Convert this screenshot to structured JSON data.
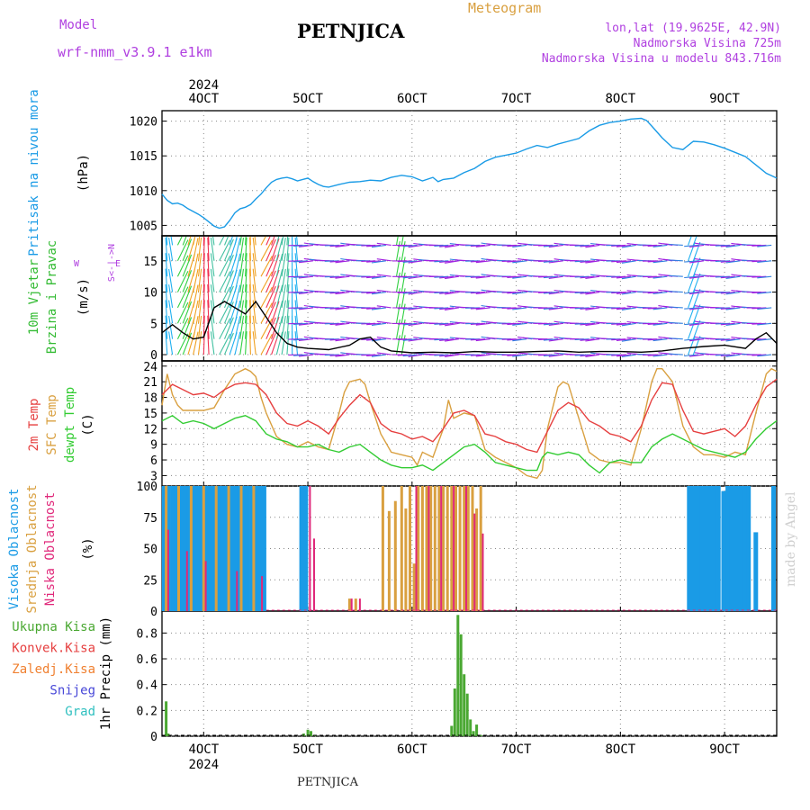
{
  "header": {
    "model_label": "Model",
    "model_name": "wrf-nmm_v3.9.1  e1km",
    "station": "PETNJICA",
    "product": "Meteogram",
    "coords": "lon,lat (19.9625E, 42.9N)",
    "altitude": "Nadmorska Visina 725m",
    "model_altitude": "Nadmorska Visina u modelu 843.716m"
  },
  "footer": {
    "station": "PETNJICA",
    "credit": "made by Angel"
  },
  "time_axis": {
    "year": "2024",
    "day_labels": [
      "4OCT",
      "5OCT",
      "6OCT",
      "7OCT",
      "8OCT",
      "9OCT"
    ],
    "day_values": [
      4,
      5,
      6,
      7,
      8,
      9
    ],
    "xlim": [
      3.6,
      9.5
    ]
  },
  "panels": {
    "pressure": {
      "ylabel_colored": "Pritisak na nivou mora",
      "unit": "(hPa)"
    },
    "wind": {
      "ylabel_1": "10m Vjetar",
      "ylabel_2": "Brzina i Pravac",
      "unit": "(m/s)",
      "compass": "W <-|-> E",
      "compass2": "S<-|->N"
    },
    "temp": {
      "ylabel_1": "2m Temp",
      "ylabel_2": "SFC Temp",
      "ylabel_3": "dewpt Temp",
      "unit": "(C)"
    },
    "cloud": {
      "ylabel_1": "Visoka Oblacnost",
      "ylabel_2": "Srednja Oblacnost",
      "ylabel_3": "Niska Oblacnost",
      "unit": "(%)"
    },
    "precip": {
      "ylabel": "1hr Precip (mm)",
      "legend": [
        "Ukupna Kisa",
        "Konvek.Kisa",
        "Zaledj.Kisa",
        "Snijeg",
        "Grad"
      ]
    }
  },
  "colors": {
    "pressure": "#1a9be6",
    "t2m": "#e64040",
    "tsfc": "#d9a040",
    "dewpt": "#33cc33",
    "high_cloud": "#1a9be6",
    "mid_cloud": "#d9a040",
    "low_cloud": "#e0287a",
    "precip_total": "#4aa832",
    "precip_conv": "#e64040",
    "precip_frz": "#f08030",
    "snow": "#4848d8",
    "hail": "#30c0c0",
    "label_purple": "#b040e0",
    "product_orange": "#d9a040"
  },
  "chart_data": [
    {
      "type": "line",
      "ylabel": "Pritisak na nivou mora (hPa)",
      "ylim": [
        1003.5,
        1021.5
      ],
      "yticks": [
        1005,
        1010,
        1015,
        1020
      ],
      "grid": true,
      "series": [
        {
          "name": "Pritisak na nivou mora",
          "x": [
            3.6,
            3.65,
            3.7,
            3.75,
            3.8,
            3.85,
            3.9,
            3.95,
            4.0,
            4.05,
            4.1,
            4.15,
            4.2,
            4.25,
            4.3,
            4.35,
            4.4,
            4.45,
            4.5,
            4.55,
            4.6,
            4.65,
            4.7,
            4.75,
            4.8,
            4.85,
            4.9,
            4.95,
            5.0,
            5.05,
            5.1,
            5.15,
            5.2,
            5.3,
            5.4,
            5.5,
            5.6,
            5.7,
            5.8,
            5.9,
            6.0,
            6.1,
            6.2,
            6.25,
            6.3,
            6.4,
            6.5,
            6.6,
            6.7,
            6.8,
            6.9,
            7.0,
            7.1,
            7.2,
            7.3,
            7.4,
            7.5,
            7.6,
            7.7,
            7.8,
            7.9,
            8.0,
            8.1,
            8.2,
            8.25,
            8.3,
            8.4,
            8.5,
            8.6,
            8.65,
            8.7,
            8.8,
            8.9,
            9.0,
            9.1,
            9.2,
            9.3,
            9.4,
            9.5
          ],
          "values": [
            1009.5,
            1008.6,
            1008.1,
            1008.2,
            1007.9,
            1007.4,
            1007.0,
            1006.6,
            1006.1,
            1005.5,
            1004.9,
            1004.6,
            1004.8,
            1005.7,
            1006.8,
            1007.4,
            1007.6,
            1008.0,
            1008.8,
            1009.5,
            1010.4,
            1011.2,
            1011.6,
            1011.8,
            1011.9,
            1011.7,
            1011.4,
            1011.6,
            1011.8,
            1011.3,
            1010.9,
            1010.6,
            1010.5,
            1010.9,
            1011.2,
            1011.3,
            1011.5,
            1011.4,
            1011.9,
            1012.2,
            1012.0,
            1011.4,
            1011.9,
            1011.3,
            1011.6,
            1011.8,
            1012.6,
            1013.2,
            1014.2,
            1014.8,
            1015.1,
            1015.4,
            1016.0,
            1016.5,
            1016.2,
            1016.7,
            1017.1,
            1017.5,
            1018.6,
            1019.4,
            1019.8,
            1020.0,
            1020.3,
            1020.4,
            1020.1,
            1019.3,
            1017.6,
            1016.2,
            1015.9,
            1016.5,
            1017.1,
            1017.0,
            1016.6,
            1016.1,
            1015.5,
            1014.9,
            1013.7,
            1012.5,
            1011.8
          ]
        }
      ]
    },
    {
      "type": "line",
      "ylabel": "10m Vjetar Brzina i Pravac (m/s)",
      "ylim": [
        -1,
        19
      ],
      "yticks": [
        0,
        5,
        10,
        15
      ],
      "grid": true,
      "series": [
        {
          "name": "10m Vjetar",
          "x": [
            3.6,
            3.7,
            3.8,
            3.9,
            4.0,
            4.1,
            4.2,
            4.3,
            4.4,
            4.5,
            4.6,
            4.7,
            4.8,
            4.9,
            5.0,
            5.2,
            5.4,
            5.5,
            5.6,
            5.7,
            5.8,
            6.0,
            6.2,
            6.4,
            6.6,
            6.8,
            7.0,
            7.2,
            7.4,
            7.6,
            7.8,
            8.0,
            8.2,
            8.4,
            8.6,
            8.8,
            9.0,
            9.2,
            9.3,
            9.4,
            9.5
          ],
          "values": [
            3.5,
            4.8,
            3.5,
            2.5,
            2.8,
            7.5,
            8.5,
            7.5,
            6.5,
            8.5,
            6.0,
            3.5,
            1.8,
            1.2,
            1.0,
            0.8,
            1.5,
            2.5,
            2.8,
            1.2,
            0.6,
            0.3,
            0.4,
            0.3,
            0.5,
            0.4,
            0.4,
            0.5,
            0.6,
            0.4,
            0.5,
            0.5,
            0.4,
            0.6,
            1.0,
            1.3,
            1.5,
            1.0,
            2.5,
            3.5,
            1.8
          ]
        }
      ]
    },
    {
      "type": "line",
      "ylabel": "Temp (C)",
      "ylim": [
        1,
        25
      ],
      "yticks": [
        3,
        6,
        9,
        12,
        15,
        18,
        21,
        24
      ],
      "grid": true,
      "series": [
        {
          "name": "2m Temp",
          "x": [
            3.6,
            3.7,
            3.8,
            3.9,
            4.0,
            4.1,
            4.2,
            4.3,
            4.4,
            4.5,
            4.6,
            4.7,
            4.8,
            4.9,
            5.0,
            5.1,
            5.2,
            5.3,
            5.4,
            5.5,
            5.6,
            5.7,
            5.8,
            5.9,
            6.0,
            6.1,
            6.2,
            6.3,
            6.4,
            6.5,
            6.6,
            6.7,
            6.8,
            6.9,
            7.0,
            7.1,
            7.2,
            7.3,
            7.4,
            7.5,
            7.6,
            7.7,
            7.8,
            7.9,
            8.0,
            8.1,
            8.2,
            8.3,
            8.4,
            8.5,
            8.6,
            8.7,
            8.8,
            8.9,
            9.0,
            9.1,
            9.2,
            9.3,
            9.4,
            9.5
          ],
          "values": [
            18.5,
            20.5,
            19.5,
            18.5,
            18.8,
            18.0,
            19.5,
            20.5,
            20.8,
            20.5,
            18.5,
            15.0,
            13.0,
            12.5,
            13.5,
            12.5,
            11.0,
            14.0,
            16.5,
            18.5,
            17.0,
            13.0,
            11.5,
            11.0,
            10.0,
            10.5,
            9.5,
            12.0,
            15.0,
            15.5,
            14.5,
            11.0,
            10.5,
            9.5,
            9.0,
            8.0,
            7.5,
            11.5,
            15.5,
            17.0,
            16.0,
            13.5,
            12.5,
            11.0,
            10.5,
            9.5,
            12.5,
            17.5,
            20.8,
            20.5,
            15.5,
            11.5,
            11.0,
            11.5,
            12.0,
            10.5,
            12.5,
            16.5,
            20.0,
            21.5
          ]
        },
        {
          "name": "SFC Temp",
          "x": [
            3.6,
            3.65,
            3.7,
            3.75,
            3.8,
            3.9,
            4.0,
            4.1,
            4.2,
            4.3,
            4.4,
            4.45,
            4.5,
            4.55,
            4.6,
            4.7,
            4.8,
            4.9,
            5.0,
            5.1,
            5.2,
            5.3,
            5.35,
            5.4,
            5.5,
            5.55,
            5.6,
            5.7,
            5.8,
            5.9,
            6.0,
            6.05,
            6.1,
            6.2,
            6.3,
            6.35,
            6.4,
            6.5,
            6.6,
            6.7,
            6.8,
            6.9,
            7.0,
            7.1,
            7.2,
            7.25,
            7.3,
            7.4,
            7.45,
            7.5,
            7.6,
            7.7,
            7.8,
            7.9,
            8.0,
            8.1,
            8.2,
            8.3,
            8.35,
            8.4,
            8.5,
            8.6,
            8.7,
            8.8,
            8.9,
            9.0,
            9.1,
            9.2,
            9.3,
            9.4,
            9.45,
            9.5
          ],
          "values": [
            16.5,
            22.5,
            18.5,
            16.5,
            15.5,
            15.5,
            15.5,
            16.0,
            19.5,
            22.5,
            23.5,
            23.0,
            22.0,
            18.0,
            15.0,
            10.5,
            9.0,
            8.5,
            9.5,
            8.5,
            8.0,
            15.0,
            19.0,
            21.0,
            21.5,
            20.5,
            17.0,
            11.0,
            7.5,
            7.0,
            6.5,
            5.0,
            7.5,
            6.5,
            12.0,
            17.5,
            14.0,
            15.0,
            14.5,
            8.0,
            6.5,
            5.5,
            4.5,
            3.0,
            2.5,
            4.0,
            12.0,
            20.0,
            21.0,
            20.5,
            14.0,
            7.5,
            6.0,
            5.5,
            5.5,
            5.0,
            12.0,
            21.0,
            23.5,
            23.5,
            21.0,
            12.5,
            8.5,
            7.0,
            7.0,
            6.5,
            7.5,
            7.0,
            15.0,
            22.5,
            23.5,
            23.0
          ]
        },
        {
          "name": "dewpt Temp",
          "x": [
            3.6,
            3.7,
            3.8,
            3.9,
            4.0,
            4.1,
            4.2,
            4.3,
            4.4,
            4.5,
            4.6,
            4.7,
            4.8,
            4.9,
            5.0,
            5.1,
            5.2,
            5.3,
            5.4,
            5.5,
            5.6,
            5.7,
            5.8,
            5.9,
            6.0,
            6.1,
            6.2,
            6.3,
            6.4,
            6.5,
            6.6,
            6.7,
            6.8,
            6.9,
            7.0,
            7.1,
            7.2,
            7.25,
            7.3,
            7.4,
            7.5,
            7.6,
            7.7,
            7.8,
            7.9,
            8.0,
            8.1,
            8.2,
            8.3,
            8.4,
            8.5,
            8.6,
            8.7,
            8.8,
            8.9,
            9.0,
            9.1,
            9.2,
            9.3,
            9.4,
            9.5
          ],
          "values": [
            13.5,
            14.5,
            13.0,
            13.5,
            13.0,
            12.0,
            13.0,
            14.0,
            14.5,
            13.5,
            11.0,
            10.0,
            9.5,
            8.5,
            8.5,
            9.0,
            8.0,
            7.5,
            8.5,
            9.0,
            7.5,
            6.0,
            5.0,
            4.5,
            4.5,
            5.0,
            4.0,
            5.5,
            7.0,
            8.5,
            9.0,
            7.5,
            5.5,
            5.0,
            4.5,
            4.0,
            4.0,
            6.5,
            7.5,
            7.0,
            7.5,
            7.0,
            5.0,
            3.5,
            5.5,
            6.0,
            5.5,
            5.5,
            8.5,
            10.0,
            11.0,
            10.0,
            9.0,
            8.0,
            7.5,
            7.0,
            6.5,
            7.5,
            10.0,
            12.0,
            13.5
          ]
        }
      ]
    },
    {
      "type": "bar",
      "ylabel": "Oblacnost (%)",
      "ylim": [
        0,
        100
      ],
      "yticks": [
        0,
        25,
        50,
        75,
        100
      ],
      "grid": true,
      "series": [
        {
          "name": "Visoka Oblacnost",
          "x": [
            3.62,
            3.66,
            3.7,
            3.74,
            3.78,
            3.82,
            3.86,
            3.9,
            3.94,
            3.98,
            4.02,
            4.06,
            4.1,
            4.14,
            4.18,
            4.22,
            4.26,
            4.3,
            4.34,
            4.38,
            4.42,
            4.46,
            4.5,
            4.54,
            4.58,
            4.94,
            4.98,
            8.66,
            8.7,
            8.74,
            8.78,
            8.82,
            8.86,
            8.9,
            8.94,
            8.99,
            9.03,
            9.07,
            9.11,
            9.15,
            9.19,
            9.23,
            9.3,
            9.47
          ],
          "values": [
            100,
            100,
            100,
            100,
            100,
            100,
            100,
            100,
            100,
            100,
            100,
            100,
            100,
            100,
            100,
            100,
            100,
            100,
            100,
            100,
            100,
            100,
            100,
            100,
            100,
            100,
            100,
            100,
            100,
            100,
            100,
            100,
            100,
            100,
            100,
            96,
            100,
            100,
            100,
            100,
            100,
            100,
            63,
            100
          ]
        },
        {
          "name": "Srednja Oblacnost",
          "x": [
            3.64,
            3.76,
            3.88,
            4.0,
            4.12,
            4.24,
            4.36,
            4.48,
            5.4,
            5.46,
            5.72,
            5.78,
            5.84,
            5.9,
            5.94,
            5.98,
            6.02,
            6.06,
            6.1,
            6.14,
            6.18,
            6.22,
            6.26,
            6.3,
            6.34,
            6.38,
            6.42,
            6.46,
            6.5,
            6.54,
            6.58,
            6.62,
            6.66
          ],
          "values": [
            100,
            100,
            100,
            100,
            100,
            100,
            100,
            100,
            10,
            10,
            100,
            80,
            88,
            100,
            82,
            100,
            38,
            100,
            100,
            100,
            100,
            100,
            100,
            100,
            100,
            100,
            100,
            100,
            100,
            100,
            100,
            82,
            100
          ]
        },
        {
          "name": "Niska Oblacnost",
          "x": [
            3.66,
            3.84,
            4.02,
            4.32,
            4.56,
            5.02,
            5.06,
            5.42,
            5.5,
            6.04,
            6.16,
            6.28,
            6.4,
            6.52,
            6.6,
            6.68
          ],
          "values": [
            65,
            48,
            40,
            32,
            28,
            100,
            58,
            10,
            10,
            100,
            100,
            100,
            100,
            100,
            78,
            62
          ]
        }
      ]
    },
    {
      "type": "bar",
      "ylabel": "1hr Precip (mm)",
      "ylim": [
        0,
        0.97
      ],
      "yticks": [
        0,
        0.2,
        0.4,
        0.6,
        0.8
      ],
      "grid": true,
      "series": [
        {
          "name": "Ukupna Kisa",
          "x": [
            3.64,
            3.66,
            4.96,
            5.0,
            5.03,
            5.07,
            6.38,
            6.41,
            6.44,
            6.47,
            6.5,
            6.53,
            6.56,
            6.59,
            6.62,
            6.66
          ],
          "values": [
            0.27,
            0.02,
            0.02,
            0.05,
            0.04,
            0.01,
            0.08,
            0.37,
            0.94,
            0.79,
            0.48,
            0.33,
            0.13,
            0.04,
            0.09,
            0.01
          ]
        }
      ]
    }
  ]
}
